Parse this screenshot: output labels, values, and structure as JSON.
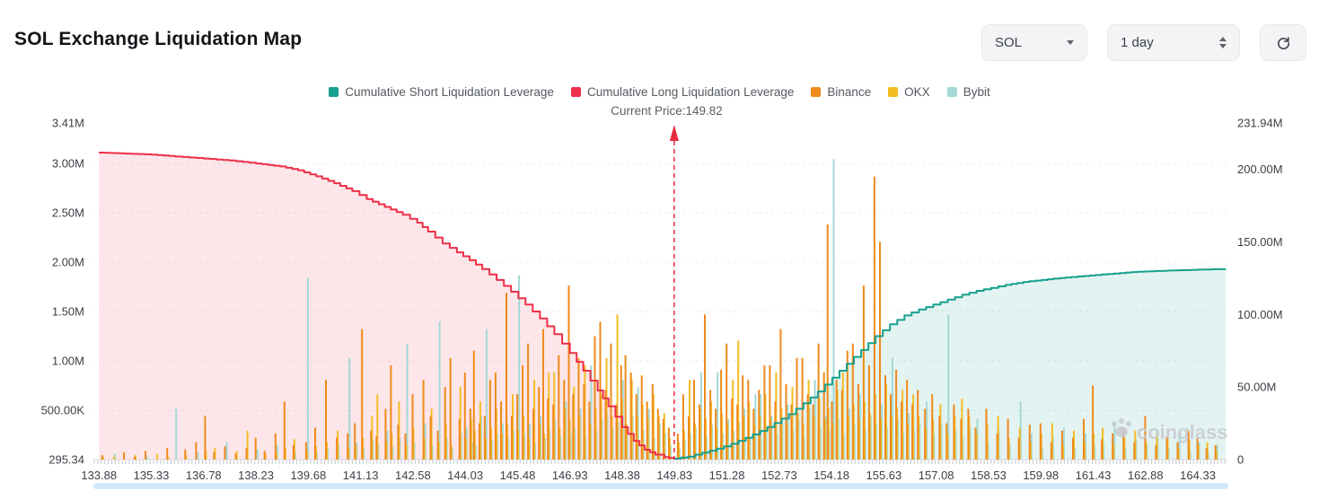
{
  "header": {
    "title": "SOL Exchange Liquidation Map",
    "symbol_select": {
      "value": "SOL"
    },
    "interval_select": {
      "value": "1 day"
    }
  },
  "watermark": "coinglass",
  "chart_data": {
    "type": "combo",
    "title": "SOL Exchange Liquidation Map",
    "subtitle": "Current Price:149.82",
    "current_price": 149.82,
    "x_range": [
      133.7,
      165.15
    ],
    "x_ticks": [
      133.88,
      135.33,
      136.78,
      138.23,
      139.68,
      141.13,
      142.58,
      144.03,
      145.48,
      146.93,
      148.38,
      149.83,
      151.28,
      152.73,
      154.18,
      155.63,
      157.08,
      158.53,
      159.98,
      161.43,
      162.88,
      164.33
    ],
    "left_axis": {
      "max": 3.41,
      "unit": "M",
      "ticks": [
        0,
        0.5,
        1,
        1.5,
        2,
        2.5,
        3,
        3.41
      ],
      "labels": [
        "295.34",
        "500.00K",
        "1.00M",
        "1.50M",
        "2.00M",
        "2.50M",
        "3.00M",
        "3.41M"
      ]
    },
    "right_axis": {
      "max": 231.94,
      "unit": "M",
      "ticks": [
        0,
        50,
        100,
        150,
        200,
        231.94
      ],
      "labels": [
        "0",
        "50.00M",
        "100.00M",
        "150.00M",
        "200.00M",
        "231.94M"
      ]
    },
    "legend": [
      {
        "label": "Cumulative Short Liquidation Leverage",
        "color": "#17a08d"
      },
      {
        "label": "Cumulative Long Liquidation Leverage",
        "color": "#ee2f49"
      },
      {
        "label": "Binance",
        "color": "#ef8a1b"
      },
      {
        "label": "OKX",
        "color": "#f4bd23"
      },
      {
        "label": "Bybit",
        "color": "#a3d8d6"
      }
    ],
    "series": [
      {
        "name": "Cumulative Long Liquidation Leverage",
        "type": "line",
        "axis": "left",
        "color": "#ee2f49",
        "fill": "rgba(238,47,73,0.12)",
        "points": [
          [
            133.88,
            3.11
          ],
          [
            134.6,
            3.1
          ],
          [
            135.33,
            3.09
          ],
          [
            136.0,
            3.07
          ],
          [
            136.78,
            3.05
          ],
          [
            137.5,
            3.03
          ],
          [
            138.23,
            3.0
          ],
          [
            138.9,
            2.97
          ],
          [
            139.4,
            2.93
          ],
          [
            139.9,
            2.87
          ],
          [
            140.4,
            2.8
          ],
          [
            140.9,
            2.72
          ],
          [
            141.3,
            2.64
          ],
          [
            141.8,
            2.56
          ],
          [
            142.3,
            2.48
          ],
          [
            142.7,
            2.4
          ],
          [
            143.0,
            2.31
          ],
          [
            143.4,
            2.19
          ],
          [
            143.8,
            2.1
          ],
          [
            144.15,
            2.02
          ],
          [
            144.5,
            1.93
          ],
          [
            144.9,
            1.82
          ],
          [
            145.3,
            1.7
          ],
          [
            145.7,
            1.57
          ],
          [
            146.1,
            1.43
          ],
          [
            146.5,
            1.27
          ],
          [
            146.93,
            1.08
          ],
          [
            147.3,
            0.9
          ],
          [
            147.7,
            0.7
          ],
          [
            148.0,
            0.54
          ],
          [
            148.38,
            0.33
          ],
          [
            148.7,
            0.19
          ],
          [
            149.0,
            0.1
          ],
          [
            149.3,
            0.05
          ],
          [
            149.55,
            0.025
          ],
          [
            149.82,
            0.01
          ]
        ]
      },
      {
        "name": "Cumulative Short Liquidation Leverage",
        "type": "line",
        "axis": "left",
        "color": "#17a08d",
        "fill": "rgba(23,160,141,0.12)",
        "points": [
          [
            149.82,
            0.01
          ],
          [
            150.2,
            0.03
          ],
          [
            150.6,
            0.07
          ],
          [
            151.0,
            0.11
          ],
          [
            151.4,
            0.16
          ],
          [
            151.8,
            0.22
          ],
          [
            152.2,
            0.29
          ],
          [
            152.6,
            0.37
          ],
          [
            153.0,
            0.46
          ],
          [
            153.4,
            0.57
          ],
          [
            153.8,
            0.69
          ],
          [
            154.2,
            0.83
          ],
          [
            154.6,
            0.97
          ],
          [
            155.0,
            1.11
          ],
          [
            155.4,
            1.25
          ],
          [
            155.8,
            1.37
          ],
          [
            156.2,
            1.46
          ],
          [
            156.6,
            1.52
          ],
          [
            157.0,
            1.57
          ],
          [
            157.4,
            1.62
          ],
          [
            157.8,
            1.67
          ],
          [
            158.2,
            1.71
          ],
          [
            158.6,
            1.74
          ],
          [
            159.0,
            1.77
          ],
          [
            159.5,
            1.8
          ],
          [
            160.0,
            1.82
          ],
          [
            160.5,
            1.84
          ],
          [
            161.0,
            1.855
          ],
          [
            161.5,
            1.87
          ],
          [
            162.0,
            1.885
          ],
          [
            162.5,
            1.9
          ],
          [
            163.0,
            1.908
          ],
          [
            163.5,
            1.915
          ],
          [
            164.0,
            1.92
          ],
          [
            164.5,
            1.926
          ],
          [
            165.1,
            1.93
          ]
        ]
      }
    ],
    "bars": {
      "axis": "right",
      "unit": "M",
      "exchanges": [
        "Binance",
        "OKX",
        "Bybit"
      ],
      "colors": [
        "#ef8a1b",
        "#f4bd23",
        "#a3d8d6"
      ],
      "rows": [
        [
          134.0,
          3,
          1.5,
          0
        ],
        [
          134.3,
          0,
          2,
          4
        ],
        [
          134.6,
          5,
          0,
          0
        ],
        [
          134.9,
          2,
          3,
          0
        ],
        [
          135.2,
          6,
          0,
          2
        ],
        [
          135.5,
          0,
          4,
          0
        ],
        [
          135.8,
          8,
          2,
          0
        ],
        [
          136.0,
          0,
          0,
          35
        ],
        [
          136.3,
          7,
          3,
          0
        ],
        [
          136.6,
          12,
          0,
          5
        ],
        [
          136.85,
          30,
          6,
          0
        ],
        [
          137.1,
          5,
          8,
          0
        ],
        [
          137.4,
          9,
          0,
          12
        ],
        [
          137.7,
          4,
          6,
          0
        ],
        [
          138.0,
          8,
          20,
          0
        ],
        [
          138.25,
          15,
          0,
          7
        ],
        [
          138.5,
          6,
          4,
          0
        ],
        [
          138.8,
          18,
          5,
          10
        ],
        [
          139.05,
          40,
          8,
          0
        ],
        [
          139.3,
          10,
          14,
          6
        ],
        [
          139.65,
          12,
          6,
          125
        ],
        [
          139.9,
          22,
          9,
          5
        ],
        [
          140.2,
          55,
          12,
          8
        ],
        [
          140.5,
          15,
          20,
          10
        ],
        [
          140.8,
          18,
          8,
          70
        ],
        [
          141.0,
          25,
          10,
          12
        ],
        [
          141.2,
          90,
          15,
          8
        ],
        [
          141.45,
          20,
          30,
          14
        ],
        [
          141.6,
          16,
          45,
          10
        ],
        [
          141.85,
          35,
          12,
          20
        ],
        [
          142.0,
          65,
          18,
          9
        ],
        [
          142.2,
          24,
          40,
          15
        ],
        [
          142.4,
          18,
          10,
          80
        ],
        [
          142.6,
          45,
          22,
          12
        ],
        [
          142.9,
          55,
          15,
          25
        ],
        [
          143.1,
          30,
          35,
          10
        ],
        [
          143.3,
          20,
          12,
          95
        ],
        [
          143.5,
          50,
          25,
          15
        ],
        [
          143.65,
          70,
          10,
          8
        ],
        [
          143.9,
          28,
          50,
          18
        ],
        [
          144.05,
          60,
          15,
          22
        ],
        [
          144.2,
          35,
          28,
          12
        ],
        [
          144.3,
          75,
          20,
          10
        ],
        [
          144.45,
          25,
          40,
          30
        ],
        [
          144.6,
          30,
          15,
          90
        ],
        [
          144.75,
          55,
          22,
          14
        ],
        [
          144.9,
          60,
          35,
          18
        ],
        [
          145.05,
          40,
          18,
          25
        ],
        [
          145.2,
          115,
          25,
          15
        ],
        [
          145.35,
          30,
          45,
          20
        ],
        [
          145.5,
          45,
          20,
          127
        ],
        [
          145.65,
          65,
          30,
          18
        ],
        [
          145.8,
          80,
          15,
          25
        ],
        [
          145.95,
          35,
          55,
          12
        ],
        [
          146.1,
          50,
          25,
          30
        ],
        [
          146.22,
          90,
          18,
          15
        ],
        [
          146.35,
          42,
          60,
          20
        ],
        [
          146.5,
          38,
          60,
          28
        ],
        [
          146.65,
          72,
          22,
          16
        ],
        [
          146.8,
          55,
          35,
          40
        ],
        [
          146.93,
          120,
          28,
          18
        ],
        [
          147.05,
          45,
          50,
          22
        ],
        [
          147.2,
          70,
          30,
          35
        ],
        [
          147.35,
          52,
          65,
          15
        ],
        [
          147.5,
          40,
          25,
          65
        ],
        [
          147.65,
          85,
          35,
          20
        ],
        [
          147.8,
          95,
          45,
          28
        ],
        [
          147.95,
          48,
          70,
          32
        ],
        [
          148.1,
          80,
          30,
          22
        ],
        [
          148.25,
          38,
          100,
          26
        ],
        [
          148.38,
          65,
          42,
          55
        ],
        [
          148.5,
          72,
          25,
          18
        ],
        [
          148.65,
          60,
          55,
          30
        ],
        [
          148.8,
          45,
          30,
          50
        ],
        [
          148.95,
          58,
          38,
          20
        ],
        [
          149.1,
          40,
          28,
          35
        ],
        [
          149.25,
          52,
          45,
          15
        ],
        [
          149.4,
          35,
          30,
          25
        ],
        [
          149.55,
          28,
          32,
          18
        ],
        [
          149.7,
          22,
          15,
          10
        ],
        [
          149.95,
          18,
          12,
          8
        ],
        [
          150.1,
          45,
          20,
          14
        ],
        [
          150.25,
          30,
          55,
          18
        ],
        [
          150.4,
          55,
          25,
          22
        ],
        [
          150.55,
          38,
          35,
          60
        ],
        [
          150.7,
          100,
          28,
          16
        ],
        [
          150.85,
          48,
          40,
          24
        ],
        [
          151.0,
          35,
          22,
          60
        ],
        [
          151.15,
          62,
          32,
          18
        ],
        [
          151.3,
          80,
          25,
          28
        ],
        [
          151.45,
          42,
          55,
          20
        ],
        [
          151.6,
          38,
          82,
          26
        ],
        [
          151.75,
          58,
          30,
          35
        ],
        [
          151.9,
          55,
          40,
          15
        ],
        [
          152.05,
          35,
          25,
          45
        ],
        [
          152.2,
          48,
          30,
          45
        ],
        [
          152.35,
          65,
          45,
          22
        ],
        [
          152.5,
          65,
          28,
          30
        ],
        [
          152.65,
          40,
          60,
          18
        ],
        [
          152.8,
          90,
          35,
          25
        ],
        [
          152.95,
          52,
          25,
          38
        ],
        [
          153.1,
          38,
          50,
          20
        ],
        [
          153.25,
          70,
          32,
          28
        ],
        [
          153.4,
          70,
          25,
          15
        ],
        [
          153.55,
          45,
          55,
          35
        ],
        [
          153.7,
          38,
          30,
          55
        ],
        [
          153.85,
          80,
          42,
          22
        ],
        [
          154.0,
          60,
          28,
          30
        ],
        [
          154.1,
          162,
          35,
          20
        ],
        [
          154.22,
          40,
          25,
          207
        ],
        [
          154.35,
          55,
          48,
          28
        ],
        [
          154.5,
          48,
          60,
          18
        ],
        [
          154.65,
          75,
          30,
          35
        ],
        [
          154.8,
          80,
          38,
          24
        ],
        [
          154.95,
          52,
          28,
          45
        ],
        [
          155.1,
          120,
          40,
          20
        ],
        [
          155.25,
          65,
          32,
          30
        ],
        [
          155.4,
          195,
          45,
          25
        ],
        [
          155.55,
          150,
          28,
          38
        ],
        [
          155.7,
          58,
          52,
          22
        ],
        [
          155.85,
          45,
          30,
          70
        ],
        [
          156.0,
          62,
          35,
          28
        ],
        [
          156.15,
          40,
          48,
          18
        ],
        [
          156.3,
          55,
          25,
          32
        ],
        [
          156.45,
          38,
          45,
          20
        ],
        [
          156.6,
          48,
          30,
          25
        ],
        [
          156.8,
          35,
          22,
          40
        ],
        [
          157.0,
          45,
          28,
          18
        ],
        [
          157.2,
          30,
          38,
          25
        ],
        [
          157.4,
          25,
          18,
          100
        ],
        [
          157.6,
          38,
          30,
          20
        ],
        [
          157.8,
          28,
          42,
          15
        ],
        [
          158.0,
          35,
          30,
          22
        ],
        [
          158.2,
          22,
          18,
          28
        ],
        [
          158.5,
          35,
          25,
          12
        ],
        [
          158.8,
          18,
          30,
          20
        ],
        [
          159.1,
          28,
          15,
          10
        ],
        [
          159.4,
          15,
          22,
          40
        ],
        [
          159.7,
          24,
          12,
          18
        ],
        [
          160.0,
          25,
          18,
          8
        ],
        [
          160.3,
          12,
          25,
          15
        ],
        [
          160.6,
          20,
          10,
          22
        ],
        [
          160.9,
          15,
          20,
          8
        ],
        [
          161.2,
          28,
          12,
          18
        ],
        [
          161.45,
          51,
          18,
          10
        ],
        [
          161.7,
          14,
          22,
          12
        ],
        [
          162.0,
          18,
          10,
          25
        ],
        [
          162.3,
          22,
          15,
          8
        ],
        [
          162.6,
          12,
          20,
          14
        ],
        [
          162.9,
          30,
          12,
          10
        ],
        [
          163.2,
          10,
          18,
          15
        ],
        [
          163.5,
          16,
          15,
          8
        ],
        [
          163.8,
          12,
          8,
          18
        ],
        [
          164.1,
          20,
          14,
          6
        ],
        [
          164.35,
          15,
          10,
          12
        ],
        [
          164.6,
          8,
          12,
          5
        ],
        [
          164.85,
          10,
          6,
          10
        ]
      ]
    }
  }
}
